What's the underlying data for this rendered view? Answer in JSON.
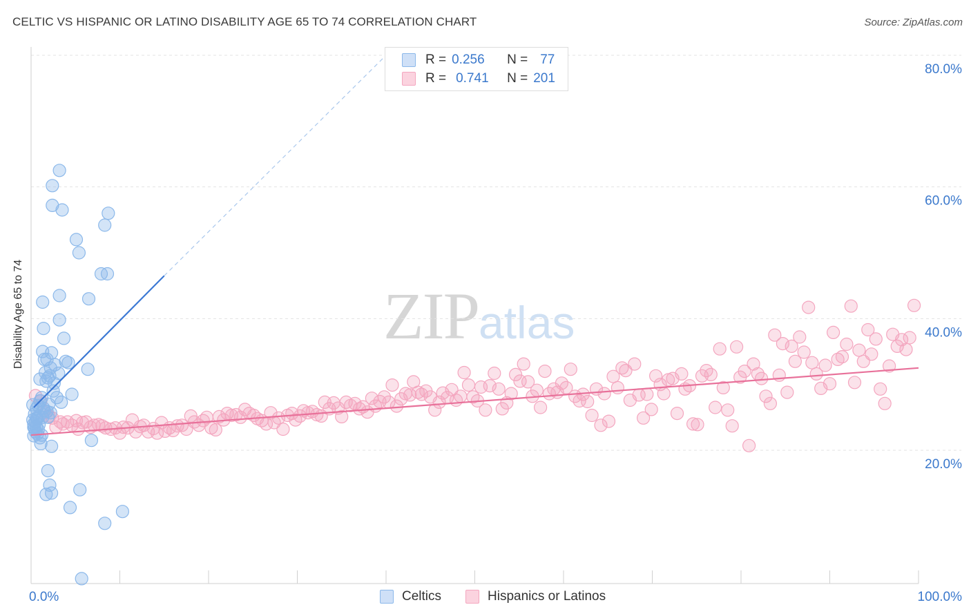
{
  "header": {
    "title": "CELTIC VS HISPANIC OR LATINO DISABILITY AGE 65 TO 74 CORRELATION CHART",
    "source": "Source: ZipAtlas.com"
  },
  "watermark": {
    "zip": "ZIP",
    "atlas": "atlas"
  },
  "stats": [
    {
      "r_label": "R =",
      "r_value": "0.256",
      "n_label": "N =",
      "n_value": "77",
      "color": "#8bb8ea"
    },
    {
      "r_label": "R =",
      "r_value": "0.741",
      "n_label": "N =",
      "n_value": "201",
      "color": "#f4a6bf"
    }
  ],
  "chart_data": {
    "type": "scatter",
    "title": "CELTIC VS HISPANIC OR LATINO DISABILITY AGE 65 TO 74 CORRELATION CHART",
    "xlabel": "",
    "ylabel": "Disability Age 65 to 74",
    "xlim": [
      0,
      100
    ],
    "ylim": [
      0,
      82
    ],
    "x_tick_labels": [
      "0.0%",
      "100.0%"
    ],
    "y_ticks": [
      20,
      40,
      60,
      80
    ],
    "y_tick_labels": [
      "20.0%",
      "40.0%",
      "60.0%",
      "80.0%"
    ],
    "grid": true,
    "legend": "bottom-center",
    "series": [
      {
        "name": "Celtics",
        "color": "#8bb8ea",
        "line_color": "#3b78d4",
        "trend": {
          "x": [
            0.3,
            15
          ],
          "y": [
            26.5,
            46.5
          ],
          "dashed_to": [
            40,
            80
          ]
        },
        "points": [
          [
            3.2,
            62.5
          ],
          [
            2.4,
            60.2
          ],
          [
            2.4,
            57.2
          ],
          [
            3.5,
            56.5
          ],
          [
            8.7,
            56
          ],
          [
            8.3,
            54.2
          ],
          [
            5.1,
            52
          ],
          [
            5.4,
            50
          ],
          [
            7.9,
            46.8
          ],
          [
            8.6,
            46.8
          ],
          [
            3.2,
            43.5
          ],
          [
            1.3,
            42.5
          ],
          [
            6.5,
            43
          ],
          [
            3.2,
            39.8
          ],
          [
            1.4,
            38.5
          ],
          [
            3.7,
            37
          ],
          [
            1.3,
            35
          ],
          [
            2.3,
            34.8
          ],
          [
            1.5,
            33.8
          ],
          [
            1.8,
            33.8
          ],
          [
            3.9,
            33.5
          ],
          [
            2.7,
            33
          ],
          [
            4.2,
            33.3
          ],
          [
            2.2,
            32.5
          ],
          [
            6.4,
            32.3
          ],
          [
            1.6,
            31.8
          ],
          [
            1.9,
            31
          ],
          [
            1.0,
            30.8
          ],
          [
            2.1,
            31.3
          ],
          [
            1.7,
            30.5
          ],
          [
            2.5,
            29
          ],
          [
            2.9,
            28
          ],
          [
            4.6,
            28.5
          ],
          [
            1.2,
            28
          ],
          [
            1.0,
            27.5
          ],
          [
            0.8,
            26.8
          ],
          [
            2.0,
            27
          ],
          [
            3.4,
            27.3
          ],
          [
            0.6,
            26.3
          ],
          [
            1.5,
            26
          ],
          [
            1.8,
            25.9
          ],
          [
            2.2,
            25.7
          ],
          [
            0.4,
            25.5
          ],
          [
            0.9,
            25.2
          ],
          [
            1.3,
            25
          ],
          [
            0.7,
            24.8
          ],
          [
            0.2,
            24.6
          ],
          [
            0.5,
            24.3
          ],
          [
            1.9,
            25
          ],
          [
            0.3,
            24
          ],
          [
            0.6,
            23.6
          ],
          [
            0.4,
            23.3
          ],
          [
            0.8,
            23.1
          ],
          [
            0.5,
            22.8
          ],
          [
            0.7,
            22.5
          ],
          [
            1.2,
            22.3
          ],
          [
            0.3,
            22.2
          ],
          [
            1.0,
            21.9
          ],
          [
            1.1,
            21
          ],
          [
            2.3,
            20.6
          ],
          [
            6.8,
            21.5
          ],
          [
            1.9,
            16.9
          ],
          [
            2.1,
            14.7
          ],
          [
            2.3,
            13.5
          ],
          [
            1.7,
            13.3
          ],
          [
            5.5,
            14
          ],
          [
            4.4,
            11.3
          ],
          [
            8.3,
            8.9
          ],
          [
            10.3,
            10.7
          ],
          [
            5.7,
            0.5
          ],
          [
            0.3,
            23.5
          ],
          [
            0.6,
            24.9
          ],
          [
            1.4,
            26.4
          ],
          [
            0.9,
            23.9
          ],
          [
            2.6,
            30.2
          ],
          [
            3.1,
            31.7
          ],
          [
            0.2,
            26.9
          ]
        ]
      },
      {
        "name": "Hispanics or Latinos",
        "color": "#f4a6bf",
        "line_color": "#e8719a",
        "trend": {
          "x": [
            0,
            100
          ],
          "y": [
            22.3,
            32.5
          ]
        },
        "points": [
          [
            0.5,
            28.3
          ],
          [
            1.1,
            27.5
          ],
          [
            1.6,
            25.7
          ],
          [
            2.0,
            25.2
          ],
          [
            2.4,
            24.9
          ],
          [
            2.8,
            23.5
          ],
          [
            3.3,
            24.3
          ],
          [
            3.6,
            24
          ],
          [
            4.1,
            24.3
          ],
          [
            4.6,
            23.8
          ],
          [
            5.1,
            24.5
          ],
          [
            5.3,
            23.2
          ],
          [
            5.8,
            24.2
          ],
          [
            6.2,
            24.3
          ],
          [
            6.7,
            23.5
          ],
          [
            7.1,
            23.8
          ],
          [
            7.6,
            23.9
          ],
          [
            8.0,
            23.7
          ],
          [
            8.4,
            23.4
          ],
          [
            9.0,
            23.2
          ],
          [
            9.5,
            23.4
          ],
          [
            10.0,
            22.6
          ],
          [
            10.4,
            23.5
          ],
          [
            10.9,
            23.4
          ],
          [
            11.4,
            24.6
          ],
          [
            11.8,
            22.8
          ],
          [
            12.3,
            23.6
          ],
          [
            12.7,
            23.8
          ],
          [
            13.2,
            22.8
          ],
          [
            13.8,
            23.3
          ],
          [
            14.2,
            22.6
          ],
          [
            14.7,
            24.2
          ],
          [
            15.1,
            22.9
          ],
          [
            15.6,
            23.4
          ],
          [
            16.0,
            23
          ],
          [
            16.5,
            23.7
          ],
          [
            17.0,
            23.8
          ],
          [
            17.5,
            23.2
          ],
          [
            18.0,
            25.2
          ],
          [
            18.4,
            24.3
          ],
          [
            18.9,
            23.8
          ],
          [
            19.4,
            24.5
          ],
          [
            19.8,
            25
          ],
          [
            20.3,
            23.4
          ],
          [
            20.8,
            23.1
          ],
          [
            21.2,
            25.1
          ],
          [
            21.7,
            24.6
          ],
          [
            22.1,
            25.6
          ],
          [
            22.6,
            25.3
          ],
          [
            23.1,
            25.4
          ],
          [
            23.6,
            25
          ],
          [
            24.1,
            26.2
          ],
          [
            24.6,
            25.6
          ],
          [
            25.1,
            25.3
          ],
          [
            25.5,
            24.8
          ],
          [
            26.0,
            24.5
          ],
          [
            26.5,
            24
          ],
          [
            27.0,
            25.7
          ],
          [
            27.4,
            24.2
          ],
          [
            27.9,
            24.9
          ],
          [
            28.4,
            23.2
          ],
          [
            28.9,
            25.3
          ],
          [
            29.4,
            25.6
          ],
          [
            29.8,
            24.6
          ],
          [
            30.3,
            25.2
          ],
          [
            30.7,
            26
          ],
          [
            31.2,
            25.7
          ],
          [
            31.7,
            25.9
          ],
          [
            32.2,
            25.4
          ],
          [
            32.7,
            25.2
          ],
          [
            33.1,
            27.3
          ],
          [
            33.6,
            26.3
          ],
          [
            34.1,
            27.2
          ],
          [
            34.6,
            26.4
          ],
          [
            35.0,
            25.1
          ],
          [
            35.5,
            27.3
          ],
          [
            36.0,
            26.8
          ],
          [
            36.5,
            27.1
          ],
          [
            37.0,
            26.3
          ],
          [
            37.4,
            26.6
          ],
          [
            37.9,
            25.8
          ],
          [
            38.4,
            27.9
          ],
          [
            38.8,
            26.7
          ],
          [
            39.3,
            27.4
          ],
          [
            39.8,
            28.1
          ],
          [
            40.3,
            27.3
          ],
          [
            40.7,
            29.9
          ],
          [
            41.2,
            26.7
          ],
          [
            41.7,
            27.8
          ],
          [
            42.2,
            28.6
          ],
          [
            42.7,
            28.4
          ],
          [
            43.1,
            30.4
          ],
          [
            43.6,
            28.8
          ],
          [
            44.0,
            28.5
          ],
          [
            44.5,
            29
          ],
          [
            45.0,
            28.1
          ],
          [
            45.5,
            26.1
          ],
          [
            46.0,
            27.3
          ],
          [
            46.4,
            28.7
          ],
          [
            46.9,
            28
          ],
          [
            47.4,
            29.2
          ],
          [
            47.9,
            27.6
          ],
          [
            48.4,
            28.2
          ],
          [
            48.8,
            31.8
          ],
          [
            49.3,
            29.9
          ],
          [
            49.8,
            28.1
          ],
          [
            50.3,
            27.5
          ],
          [
            50.7,
            29.6
          ],
          [
            51.2,
            26.1
          ],
          [
            51.7,
            29.8
          ],
          [
            52.2,
            31.7
          ],
          [
            52.7,
            29.3
          ],
          [
            53.1,
            26.3
          ],
          [
            53.6,
            27.2
          ],
          [
            54.1,
            28.6
          ],
          [
            54.6,
            31.5
          ],
          [
            55.1,
            30.5
          ],
          [
            55.5,
            33.1
          ],
          [
            56.0,
            30.4
          ],
          [
            56.5,
            28.2
          ],
          [
            57.0,
            29.1
          ],
          [
            57.4,
            26.5
          ],
          [
            57.9,
            32
          ],
          [
            58.4,
            28.6
          ],
          [
            58.9,
            29.3
          ],
          [
            59.3,
            28.8
          ],
          [
            59.8,
            30.2
          ],
          [
            60.3,
            29.5
          ],
          [
            60.8,
            32.3
          ],
          [
            61.3,
            28.2
          ],
          [
            61.8,
            27.5
          ],
          [
            62.2,
            28.5
          ],
          [
            62.7,
            27.4
          ],
          [
            63.2,
            25.3
          ],
          [
            63.7,
            29.3
          ],
          [
            64.2,
            23.8
          ],
          [
            64.6,
            28.6
          ],
          [
            65.1,
            24.4
          ],
          [
            65.6,
            31.2
          ],
          [
            66.1,
            29.5
          ],
          [
            66.6,
            32.5
          ],
          [
            67.0,
            32.1
          ],
          [
            67.5,
            27.6
          ],
          [
            68.0,
            33.1
          ],
          [
            68.5,
            28.4
          ],
          [
            69.0,
            24.9
          ],
          [
            69.4,
            28.5
          ],
          [
            69.9,
            26.2
          ],
          [
            70.4,
            31.3
          ],
          [
            70.9,
            30
          ],
          [
            71.3,
            28.6
          ],
          [
            71.8,
            30.7
          ],
          [
            72.3,
            30.9
          ],
          [
            72.8,
            25.6
          ],
          [
            73.3,
            31.6
          ],
          [
            73.7,
            29.3
          ],
          [
            74.2,
            29.8
          ],
          [
            74.6,
            24
          ],
          [
            75.1,
            23.9
          ],
          [
            75.6,
            31.3
          ],
          [
            76.1,
            32.1
          ],
          [
            76.6,
            31.5
          ],
          [
            77.1,
            26.5
          ],
          [
            77.6,
            35.4
          ],
          [
            78.0,
            29.5
          ],
          [
            78.5,
            26.1
          ],
          [
            79.0,
            23.7
          ],
          [
            79.5,
            35.7
          ],
          [
            79.9,
            31.1
          ],
          [
            80.4,
            32
          ],
          [
            80.9,
            20.7
          ],
          [
            81.4,
            33.1
          ],
          [
            81.9,
            31.6
          ],
          [
            82.3,
            30.9
          ],
          [
            82.8,
            28.2
          ],
          [
            83.3,
            27.1
          ],
          [
            83.8,
            37.5
          ],
          [
            84.3,
            31.4
          ],
          [
            84.7,
            36.2
          ],
          [
            85.2,
            28.8
          ],
          [
            85.7,
            35.8
          ],
          [
            86.1,
            33.5
          ],
          [
            86.6,
            37.2
          ],
          [
            87.1,
            34.9
          ],
          [
            87.6,
            41.7
          ],
          [
            88.0,
            33.3
          ],
          [
            88.5,
            31.6
          ],
          [
            89.0,
            29.4
          ],
          [
            89.5,
            32.9
          ],
          [
            90.0,
            30.1
          ],
          [
            90.4,
            37.9
          ],
          [
            90.9,
            33.8
          ],
          [
            91.4,
            34.2
          ],
          [
            91.9,
            36.1
          ],
          [
            92.4,
            41.9
          ],
          [
            92.8,
            30.3
          ],
          [
            93.3,
            35.2
          ],
          [
            93.8,
            33.5
          ],
          [
            94.3,
            38.3
          ],
          [
            94.7,
            34.6
          ],
          [
            95.2,
            36.9
          ],
          [
            95.7,
            29.3
          ],
          [
            96.2,
            27.1
          ],
          [
            96.7,
            32.8
          ],
          [
            97.1,
            37.6
          ],
          [
            97.6,
            35.8
          ],
          [
            98.1,
            36.8
          ],
          [
            98.6,
            35.3
          ],
          [
            99.0,
            37.1
          ],
          [
            99.5,
            42
          ]
        ]
      }
    ]
  }
}
